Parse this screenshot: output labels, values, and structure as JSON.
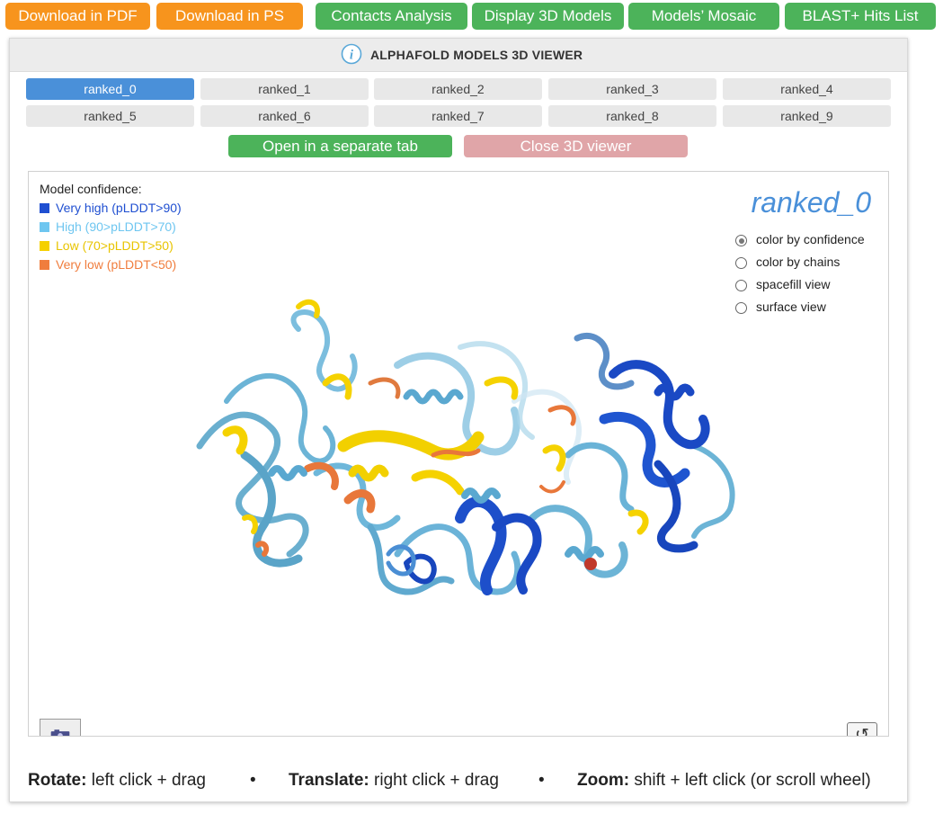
{
  "toolbar": {
    "download_pdf": "Download in PDF",
    "download_ps": "Download in PS",
    "contacts_analysis": "Contacts Analysis",
    "display_3d_models": "Display 3D Models",
    "models_mosaic": "Models’ Mosaic",
    "blast_hits": "BLAST+ Hits List"
  },
  "panel": {
    "title": "ALPHAFOLD MODELS 3D VIEWER",
    "models": [
      "ranked_0",
      "ranked_1",
      "ranked_2",
      "ranked_3",
      "ranked_4",
      "ranked_5",
      "ranked_6",
      "ranked_7",
      "ranked_8",
      "ranked_9"
    ],
    "selected_model": "ranked_0",
    "open_tab_label": "Open in a separate tab",
    "close_viewer_label": "Close 3D viewer"
  },
  "viewer": {
    "legend_title": "Model confidence:",
    "legend": [
      {
        "label": "Very high (pLDDT>90)",
        "color": "#1f4fd1"
      },
      {
        "label": "High (90>pLDDT>70)",
        "color": "#6ec6f0"
      },
      {
        "label": "Low (70>pLDDT>50)",
        "color": "#f5d000"
      },
      {
        "label": "Very low (pLDDT<50)",
        "color": "#f07d3d"
      }
    ],
    "model_name": "ranked_0",
    "view_options": [
      {
        "label": "color by confidence",
        "selected": true
      },
      {
        "label": "color by chains",
        "selected": false
      },
      {
        "label": "spacefill view",
        "selected": false
      },
      {
        "label": "surface view",
        "selected": false
      }
    ],
    "camera_icon": "camera-icon",
    "reset_icon": "reset-view-icon"
  },
  "instructions": {
    "rotate_label": "Rotate:",
    "rotate_text": "left click + drag",
    "translate_label": "Translate:",
    "translate_text": "right click + drag",
    "zoom_label": "Zoom:",
    "zoom_text": "shift + left click (or scroll wheel)",
    "separator": "•"
  }
}
